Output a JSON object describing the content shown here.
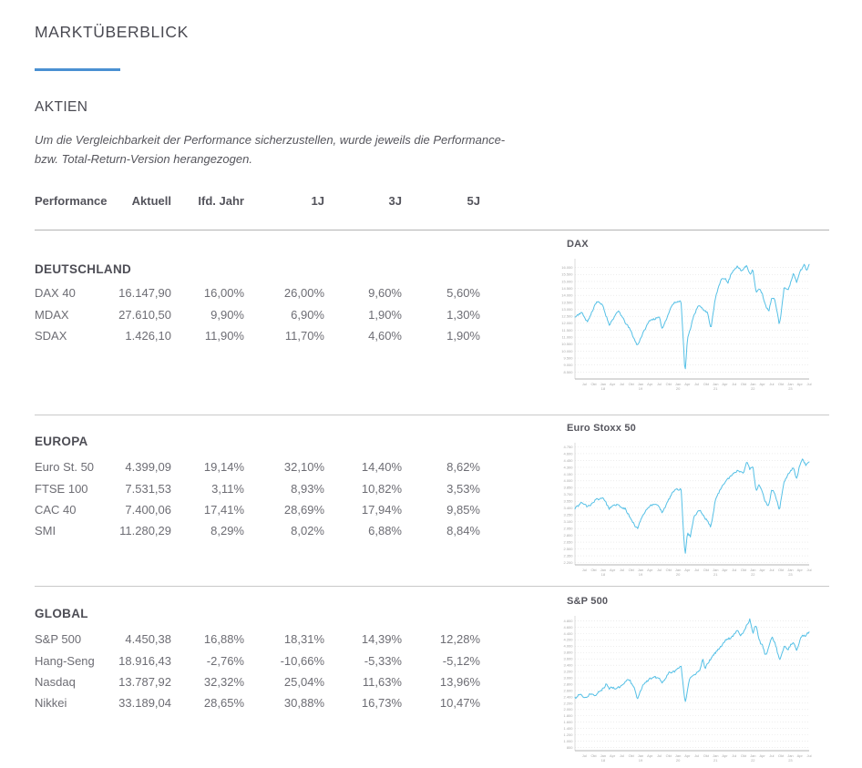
{
  "page": {
    "title": "MARKTÜBERBLICK",
    "section_title": "AKTIEN",
    "disclaimer_line1": "Um die Vergleichbarkeit der Performance sicherzustellen, wurde jeweils die Performance-",
    "disclaimer_line2": "bzw. Total-Return-Version herangezogen.",
    "accent_color": "#4a90d2",
    "line_color": "#55c0e6"
  },
  "table": {
    "headers": [
      "Performance",
      "Aktuell",
      "Ifd. Jahr",
      "1J",
      "3J",
      "5J"
    ],
    "groups": [
      {
        "name": "DEUTSCHLAND",
        "rows": [
          {
            "label": "DAX 40",
            "values": [
              "16.147,90",
              "16,00%",
              "26,00%",
              "9,60%",
              "5,60%"
            ]
          },
          {
            "label": "MDAX",
            "values": [
              "27.610,50",
              "9,90%",
              "6,90%",
              "1,90%",
              "1,30%"
            ]
          },
          {
            "label": "SDAX",
            "values": [
              "1.426,10",
              "11,90%",
              "11,70%",
              "4,60%",
              "1,90%"
            ]
          }
        ]
      },
      {
        "name": "EUROPA",
        "rows": [
          {
            "label": "Euro St. 50",
            "values": [
              "4.399,09",
              "19,14%",
              "32,10%",
              "14,40%",
              "8,62%"
            ]
          },
          {
            "label": "FTSE 100",
            "values": [
              "7.531,53",
              "3,11%",
              "8,93%",
              "10,82%",
              "3,53%"
            ]
          },
          {
            "label": "CAC 40",
            "values": [
              "7.400,06",
              "17,41%",
              "28,69%",
              "17,94%",
              "9,85%"
            ]
          },
          {
            "label": "SMI",
            "values": [
              "11.280,29",
              "8,29%",
              "8,02%",
              "6,88%",
              "8,84%"
            ]
          }
        ]
      },
      {
        "name": "GLOBAL",
        "rows": [
          {
            "label": "S&P 500",
            "values": [
              "4.450,38",
              "16,88%",
              "18,31%",
              "14,39%",
              "12,28%"
            ]
          },
          {
            "label": "Hang-Seng",
            "values": [
              "18.916,43",
              "-2,76%",
              "-10,66%",
              "-5,33%",
              "-5,12%"
            ]
          },
          {
            "label": "Nasdaq",
            "values": [
              "13.787,92",
              "32,32%",
              "25,04%",
              "11,63%",
              "13,96%"
            ]
          },
          {
            "label": "Nikkei",
            "values": [
              "33.189,04",
              "28,65%",
              "30,88%",
              "16,73%",
              "10,47%"
            ]
          }
        ]
      }
    ]
  },
  "chart_data": [
    {
      "type": "line",
      "title": "DAX",
      "legend": "none",
      "grid": "horizontal-dotted",
      "ylim": [
        8000,
        16500
      ],
      "yticks": [
        8500,
        9000,
        9500,
        10000,
        10500,
        11000,
        11500,
        12000,
        12500,
        13000,
        13500,
        14000,
        14500,
        15000,
        15500,
        16000
      ],
      "xticks": [
        "Jul",
        "Okt",
        "Jan|18",
        "Apr",
        "Jul",
        "Okt",
        "Jan|19",
        "Apr",
        "Jul",
        "Okt",
        "Jan|20",
        "Apr",
        "Jul",
        "Okt",
        "Jan|21",
        "Apr",
        "Jul",
        "Okt",
        "Jan|22",
        "Apr",
        "Jul",
        "Okt",
        "Jan|23",
        "Apr",
        "Jul"
      ],
      "seed": 11,
      "keypoints": [
        [
          0.0,
          12440
        ],
        [
          0.027,
          12780
        ],
        [
          0.053,
          12060
        ],
        [
          0.093,
          13480
        ],
        [
          0.12,
          13340
        ],
        [
          0.147,
          11890
        ],
        [
          0.187,
          12900
        ],
        [
          0.24,
          11300
        ],
        [
          0.267,
          10400
        ],
        [
          0.3,
          11550
        ],
        [
          0.32,
          12350
        ],
        [
          0.36,
          12500
        ],
        [
          0.373,
          11650
        ],
        [
          0.413,
          13300
        ],
        [
          0.453,
          13750
        ],
        [
          0.462,
          11000
        ],
        [
          0.47,
          8300
        ],
        [
          0.48,
          10800
        ],
        [
          0.493,
          11600
        ],
        [
          0.507,
          12600
        ],
        [
          0.527,
          13200
        ],
        [
          0.547,
          12900
        ],
        [
          0.565,
          12700
        ],
        [
          0.58,
          11500
        ],
        [
          0.6,
          13900
        ],
        [
          0.627,
          15250
        ],
        [
          0.64,
          15300
        ],
        [
          0.653,
          15000
        ],
        [
          0.667,
          15700
        ],
        [
          0.68,
          15850
        ],
        [
          0.693,
          15950
        ],
        [
          0.71,
          15600
        ],
        [
          0.733,
          16250
        ],
        [
          0.747,
          15650
        ],
        [
          0.76,
          15900
        ],
        [
          0.773,
          14100
        ],
        [
          0.787,
          14500
        ],
        [
          0.8,
          14150
        ],
        [
          0.813,
          13300
        ],
        [
          0.827,
          12800
        ],
        [
          0.84,
          13750
        ],
        [
          0.853,
          13600
        ],
        [
          0.873,
          11950
        ],
        [
          0.893,
          14450
        ],
        [
          0.913,
          14350
        ],
        [
          0.933,
          15550
        ],
        [
          0.947,
          14950
        ],
        [
          0.96,
          15850
        ],
        [
          0.97,
          16100
        ],
        [
          0.98,
          16400
        ],
        [
          0.99,
          15850
        ],
        [
          1.0,
          16250
        ]
      ]
    },
    {
      "type": "line",
      "title": "Euro Stoxx 50",
      "legend": "none",
      "grid": "horizontal-dotted",
      "ylim": [
        2150,
        4800
      ],
      "yticks": [
        2200,
        2350,
        2500,
        2650,
        2800,
        2950,
        3100,
        3250,
        3400,
        3550,
        3700,
        3850,
        4000,
        4150,
        4300,
        4450,
        4600,
        4750
      ],
      "xticks": [
        "Jul",
        "Okt",
        "Jan|18",
        "Apr",
        "Jul",
        "Okt",
        "Jan|19",
        "Apr",
        "Jul",
        "Okt",
        "Jan|20",
        "Apr",
        "Jul",
        "Okt",
        "Jan|21",
        "Apr",
        "Jul",
        "Okt",
        "Jan|22",
        "Apr",
        "Jul",
        "Okt",
        "Jan|23",
        "Apr",
        "Jul"
      ],
      "seed": 23,
      "keypoints": [
        [
          0.0,
          3440
        ],
        [
          0.027,
          3560
        ],
        [
          0.053,
          3430
        ],
        [
          0.093,
          3620
        ],
        [
          0.12,
          3650
        ],
        [
          0.147,
          3340
        ],
        [
          0.187,
          3500
        ],
        [
          0.213,
          3370
        ],
        [
          0.24,
          3200
        ],
        [
          0.267,
          2950
        ],
        [
          0.3,
          3300
        ],
        [
          0.32,
          3450
        ],
        [
          0.36,
          3480
        ],
        [
          0.373,
          3320
        ],
        [
          0.413,
          3690
        ],
        [
          0.453,
          3860
        ],
        [
          0.462,
          3000
        ],
        [
          0.47,
          2300
        ],
        [
          0.48,
          2850
        ],
        [
          0.493,
          2800
        ],
        [
          0.507,
          3230
        ],
        [
          0.527,
          3350
        ],
        [
          0.547,
          3250
        ],
        [
          0.565,
          3150
        ],
        [
          0.58,
          2950
        ],
        [
          0.6,
          3600
        ],
        [
          0.627,
          3870
        ],
        [
          0.653,
          4000
        ],
        [
          0.667,
          4080
        ],
        [
          0.693,
          4180
        ],
        [
          0.72,
          4150
        ],
        [
          0.733,
          4400
        ],
        [
          0.747,
          4230
        ],
        [
          0.76,
          4300
        ],
        [
          0.773,
          3750
        ],
        [
          0.787,
          3950
        ],
        [
          0.8,
          3800
        ],
        [
          0.813,
          3550
        ],
        [
          0.827,
          3450
        ],
        [
          0.84,
          3800
        ],
        [
          0.853,
          3700
        ],
        [
          0.873,
          3300
        ],
        [
          0.893,
          3950
        ],
        [
          0.913,
          4150
        ],
        [
          0.933,
          4300
        ],
        [
          0.947,
          4050
        ],
        [
          0.96,
          4320
        ],
        [
          0.973,
          4460
        ],
        [
          0.985,
          4380
        ],
        [
          1.0,
          4450
        ]
      ]
    },
    {
      "type": "line",
      "title": "S&P 500",
      "legend": "none",
      "grid": "horizontal-dotted",
      "ylim": [
        700,
        4900
      ],
      "yticks": [
        800,
        1000,
        1200,
        1400,
        1600,
        1800,
        2000,
        2200,
        2400,
        2600,
        2800,
        3000,
        3200,
        3400,
        3600,
        3800,
        4000,
        4200,
        4400,
        4600,
        4800
      ],
      "xticks": [
        "Jul",
        "Okt",
        "Jan|18",
        "Apr",
        "Jul",
        "Okt",
        "Jan|19",
        "Apr",
        "Jul",
        "Okt",
        "Jan|20",
        "Apr",
        "Jul",
        "Okt",
        "Jan|21",
        "Apr",
        "Jul",
        "Okt",
        "Jan|22",
        "Apr",
        "Jul",
        "Okt",
        "Jan|23",
        "Apr",
        "Jul"
      ],
      "seed": 37,
      "keypoints": [
        [
          0.0,
          2360
        ],
        [
          0.04,
          2430
        ],
        [
          0.08,
          2470
        ],
        [
          0.107,
          2580
        ],
        [
          0.12,
          2680
        ],
        [
          0.133,
          2870
        ],
        [
          0.147,
          2600
        ],
        [
          0.173,
          2650
        ],
        [
          0.2,
          2750
        ],
        [
          0.227,
          2930
        ],
        [
          0.24,
          2820
        ],
        [
          0.253,
          2750
        ],
        [
          0.267,
          2350
        ],
        [
          0.293,
          2750
        ],
        [
          0.32,
          2900
        ],
        [
          0.347,
          2950
        ],
        [
          0.36,
          3020
        ],
        [
          0.373,
          2850
        ],
        [
          0.4,
          3100
        ],
        [
          0.44,
          3330
        ],
        [
          0.453,
          3390
        ],
        [
          0.462,
          2800
        ],
        [
          0.47,
          2240
        ],
        [
          0.487,
          2900
        ],
        [
          0.507,
          3100
        ],
        [
          0.533,
          3230
        ],
        [
          0.547,
          3580
        ],
        [
          0.553,
          3320
        ],
        [
          0.573,
          3500
        ],
        [
          0.6,
          3800
        ],
        [
          0.627,
          4000
        ],
        [
          0.653,
          4200
        ],
        [
          0.68,
          4400
        ],
        [
          0.693,
          4540
        ],
        [
          0.707,
          4310
        ],
        [
          0.733,
          4700
        ],
        [
          0.747,
          4790
        ],
        [
          0.76,
          4350
        ],
        [
          0.773,
          4620
        ],
        [
          0.787,
          4200
        ],
        [
          0.8,
          4120
        ],
        [
          0.813,
          3750
        ],
        [
          0.827,
          3950
        ],
        [
          0.84,
          4280
        ],
        [
          0.853,
          4100
        ],
        [
          0.873,
          3590
        ],
        [
          0.893,
          3950
        ],
        [
          0.907,
          3850
        ],
        [
          0.92,
          4080
        ],
        [
          0.933,
          4170
        ],
        [
          0.947,
          3900
        ],
        [
          0.96,
          4150
        ],
        [
          0.973,
          4350
        ],
        [
          0.987,
          4420
        ],
        [
          1.0,
          4480
        ]
      ]
    }
  ]
}
